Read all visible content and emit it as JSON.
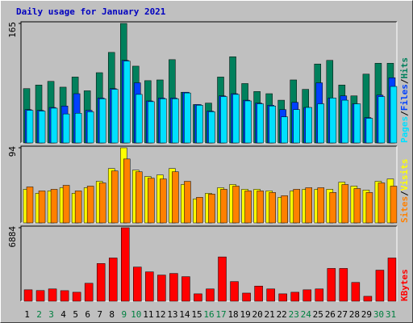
{
  "chart_data": {
    "type": "bar",
    "title": "Daily usage for January 2021",
    "separator": "/",
    "categories": [
      "1",
      "2",
      "3",
      "4",
      "5",
      "6",
      "7",
      "8",
      "9",
      "10",
      "11",
      "12",
      "13",
      "14",
      "15",
      "16",
      "17",
      "18",
      "19",
      "20",
      "21",
      "22",
      "23",
      "24",
      "25",
      "26",
      "27",
      "28",
      "29",
      "30",
      "31"
    ],
    "weekend": [
      false,
      true,
      true,
      false,
      false,
      false,
      false,
      false,
      true,
      true,
      false,
      false,
      false,
      false,
      false,
      true,
      true,
      false,
      false,
      false,
      false,
      false,
      true,
      true,
      false,
      false,
      false,
      false,
      false,
      true,
      true
    ],
    "weekday_color": "#000000",
    "weekend_color": "#008040",
    "panels": [
      {
        "ylim": [
          0,
          165
        ],
        "yticks": [
          165
        ],
        "series": [
          {
            "name": "Hits",
            "color": "#00805c",
            "values": [
              75,
              80,
              85,
              77,
              91,
              72,
              97,
              125,
              165,
              106,
              86,
              87,
              115,
              70,
              53,
              55,
              91,
              119,
              82,
              71,
              68,
              59,
              87,
              74,
              109,
              114,
              80,
              65,
              95,
              110,
              110
            ]
          },
          {
            "name": "Files",
            "color": "#0040ff",
            "values": [
              46,
              45,
              49,
              51,
              68,
              45,
              62,
              75,
              114,
              83,
              58,
              62,
              62,
              70,
              53,
              44,
              65,
              68,
              59,
              55,
              52,
              46,
              56,
              49,
              83,
              62,
              65,
              54,
              35,
              66,
              90
            ]
          },
          {
            "name": "Pages",
            "color": "#00e0ff",
            "values": [
              45,
              44,
              48,
              40,
              41,
              43,
              61,
              74,
              113,
              67,
              57,
              61,
              61,
              69,
              52,
              43,
              64,
              67,
              58,
              54,
              51,
              36,
              46,
              49,
              54,
              62,
              59,
              54,
              34,
              64,
              78
            ]
          }
        ]
      },
      {
        "ylim": [
          0,
          94
        ],
        "yticks": [
          94
        ],
        "series": [
          {
            "name": "Visits",
            "color": "#ffff00",
            "values": [
              42,
              37,
              40,
              44,
              37,
              44,
              52,
              68,
              94,
              66,
              58,
              60,
              68,
              48,
              30,
              37,
              44,
              48,
              42,
              42,
              40,
              32,
              40,
              42,
              42,
              42,
              51,
              46,
              41,
              52,
              55
            ]
          },
          {
            "name": "Sites",
            "color": "#ff8000",
            "values": [
              45,
              40,
              42,
              47,
              40,
              46,
              50,
              65,
              80,
              64,
              56,
              55,
              64,
              52,
              32,
              36,
              42,
              46,
              40,
              40,
              38,
              34,
              42,
              44,
              44,
              38,
              48,
              43,
              38,
              50,
              46
            ]
          }
        ]
      },
      {
        "ylim": [
          0,
          6884
        ],
        "yticks": [
          6884
        ],
        "series": [
          {
            "name": "KBytes",
            "color": "#ff0000",
            "values": [
              1070,
              1000,
              1150,
              990,
              840,
              1680,
              3530,
              4050,
              6884,
              3200,
              2750,
              2450,
              2600,
              2300,
              690,
              1150,
              4150,
              1840,
              760,
              1420,
              1150,
              690,
              840,
              1070,
              1150,
              3070,
              3070,
              1760,
              460,
              2910,
              4050
            ]
          }
        ]
      }
    ]
  }
}
